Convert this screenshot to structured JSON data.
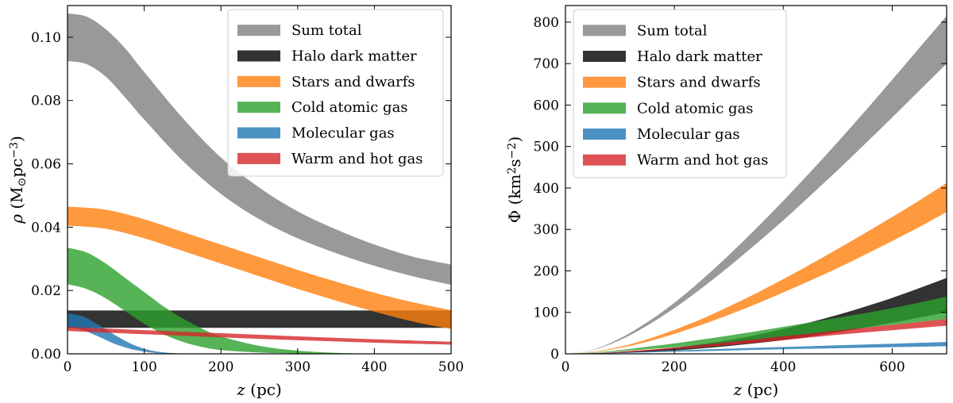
{
  "chart_data": [
    {
      "type": "area",
      "panel": "left",
      "xlabel": "z (pc)",
      "ylabel": "ρ (M⊙pc⁻³)",
      "xlim": [
        0,
        500
      ],
      "ylim": [
        0,
        0.11
      ],
      "xticks": [
        0,
        100,
        200,
        300,
        400,
        500
      ],
      "yticks": [
        0.0,
        0.02,
        0.04,
        0.06,
        0.08,
        0.1
      ],
      "xtick_labels": [
        "0",
        "100",
        "200",
        "300",
        "400",
        "500"
      ],
      "ytick_labels": [
        "0.00",
        "0.02",
        "0.04",
        "0.06",
        "0.08",
        "0.10"
      ],
      "legend_position": "top-right",
      "series": [
        {
          "name": "Sum total",
          "color": "#7f7f7f",
          "x": [
            0,
            25,
            50,
            75,
            100,
            150,
            200,
            250,
            300,
            350,
            400,
            450,
            500
          ],
          "lower": [
            0.0925,
            0.0915,
            0.0875,
            0.081,
            0.074,
            0.061,
            0.0505,
            0.0425,
            0.0365,
            0.0318,
            0.0278,
            0.0245,
            0.0218
          ],
          "upper": [
            0.1075,
            0.1065,
            0.1025,
            0.0965,
            0.089,
            0.0745,
            0.062,
            0.0525,
            0.045,
            0.0393,
            0.0345,
            0.0307,
            0.0282
          ]
        },
        {
          "name": "Halo dark matter",
          "color": "#000000",
          "x": [
            0,
            500
          ],
          "lower": [
            0.0082,
            0.0082
          ],
          "upper": [
            0.0137,
            0.0137
          ]
        },
        {
          "name": "Stars and dwarfs",
          "color": "#ff7f0e",
          "x": [
            0,
            50,
            100,
            150,
            200,
            250,
            300,
            350,
            400,
            450,
            500
          ],
          "lower": [
            0.0405,
            0.0395,
            0.0365,
            0.0325,
            0.0285,
            0.0245,
            0.0205,
            0.0168,
            0.0133,
            0.0102,
            0.0078
          ],
          "upper": [
            0.0465,
            0.0455,
            0.0425,
            0.0385,
            0.0345,
            0.0305,
            0.0265,
            0.0228,
            0.0193,
            0.0163,
            0.0138
          ]
        },
        {
          "name": "Cold atomic gas",
          "color": "#2ca02c",
          "x": [
            0,
            25,
            50,
            75,
            100,
            125,
            150,
            175,
            200,
            250,
            300,
            350,
            400
          ],
          "lower": [
            0.022,
            0.0205,
            0.0175,
            0.0135,
            0.0095,
            0.0062,
            0.0038,
            0.0022,
            0.0012,
            0.0004,
            0.0001,
            0.0,
            0.0
          ],
          "upper": [
            0.0335,
            0.032,
            0.0285,
            0.024,
            0.0195,
            0.015,
            0.0112,
            0.008,
            0.0055,
            0.0025,
            0.001,
            0.0003,
            0.0
          ]
        },
        {
          "name": "Molecular gas",
          "color": "#1f77b4",
          "x": [
            0,
            20,
            40,
            60,
            80,
            100,
            120,
            150,
            200
          ],
          "lower": [
            0.0085,
            0.0075,
            0.0055,
            0.0033,
            0.0017,
            0.0007,
            0.0002,
            0.0,
            0.0
          ],
          "upper": [
            0.0128,
            0.0118,
            0.0092,
            0.0062,
            0.0035,
            0.0016,
            0.0006,
            0.0001,
            0.0
          ]
        },
        {
          "name": "Warm and hot gas",
          "color": "#d62728",
          "x": [
            0,
            100,
            200,
            300,
            400,
            500
          ],
          "lower": [
            0.0072,
            0.0062,
            0.0052,
            0.0043,
            0.0035,
            0.0029
          ],
          "upper": [
            0.0085,
            0.0075,
            0.0065,
            0.0055,
            0.0046,
            0.0038
          ]
        }
      ]
    },
    {
      "type": "area",
      "panel": "right",
      "xlabel": "z (pc)",
      "ylabel": "Φ (km²s⁻²)",
      "xlim": [
        0,
        700
      ],
      "ylim": [
        0,
        840
      ],
      "xticks": [
        0,
        200,
        400,
        600
      ],
      "yticks": [
        0,
        100,
        200,
        300,
        400,
        500,
        600,
        700,
        800
      ],
      "xtick_labels": [
        "0",
        "200",
        "400",
        "600"
      ],
      "ytick_labels": [
        "0",
        "100",
        "200",
        "300",
        "400",
        "500",
        "600",
        "700",
        "800"
      ],
      "legend_position": "top-left",
      "series": [
        {
          "name": "Sum total",
          "color": "#7f7f7f",
          "x": [
            0,
            50,
            100,
            150,
            200,
            250,
            300,
            350,
            400,
            450,
            500,
            550,
            600,
            650,
            700
          ],
          "lower": [
            0,
            9,
            33,
            68,
            110,
            158,
            210,
            265,
            322,
            382,
            443,
            506,
            570,
            635,
            700
          ],
          "upper": [
            0,
            10,
            37,
            76,
            123,
            178,
            238,
            302,
            369,
            439,
            511,
            585,
            661,
            738,
            815
          ]
        },
        {
          "name": "Halo dark matter",
          "color": "#000000",
          "x": [
            0,
            100,
            200,
            300,
            400,
            500,
            600,
            700
          ],
          "lower": [
            0,
            2,
            8,
            19,
            33,
            52,
            75,
            100
          ],
          "upper": [
            0,
            4,
            15,
            33,
            60,
            94,
            135,
            183
          ]
        },
        {
          "name": "Stars and dwarfs",
          "color": "#ff7f0e",
          "x": [
            0,
            50,
            100,
            150,
            200,
            250,
            300,
            350,
            400,
            450,
            500,
            550,
            600,
            650,
            700
          ],
          "lower": [
            0,
            4,
            14,
            29,
            48,
            70,
            94,
            120,
            148,
            177,
            207,
            239,
            272,
            306,
            342
          ],
          "upper": [
            0,
            5,
            17,
            35,
            58,
            84,
            114,
            146,
            180,
            216,
            253,
            291,
            330,
            370,
            412
          ]
        },
        {
          "name": "Cold atomic gas",
          "color": "#2ca02c",
          "x": [
            0,
            50,
            100,
            150,
            200,
            300,
            400,
            500,
            600,
            700
          ],
          "lower": [
            0,
            2,
            6,
            11,
            16,
            28,
            42,
            56,
            70,
            84
          ],
          "upper": [
            0,
            3,
            9,
            17,
            25,
            44,
            65,
            87,
            110,
            138
          ]
        },
        {
          "name": "Molecular gas",
          "color": "#1f77b4",
          "x": [
            0,
            50,
            100,
            200,
            300,
            400,
            500,
            600,
            700
          ],
          "lower": [
            0,
            0.5,
            2,
            5,
            8,
            11,
            13.5,
            16,
            18.5
          ],
          "upper": [
            0,
            1,
            3,
            8,
            12.5,
            16.5,
            20.5,
            24.5,
            28.5
          ]
        },
        {
          "name": "Warm and hot gas",
          "color": "#d62728",
          "x": [
            0,
            50,
            100,
            200,
            300,
            400,
            500,
            600,
            700
          ],
          "lower": [
            0,
            1,
            3,
            11,
            21,
            33,
            46,
            57,
            68
          ],
          "upper": [
            0,
            1.5,
            5,
            15,
            28,
            42,
            56,
            70,
            84
          ]
        }
      ]
    }
  ]
}
